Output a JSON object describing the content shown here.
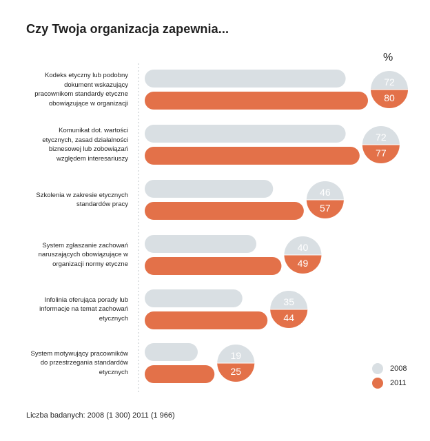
{
  "title": "Czy Twoja organizacja zapewnia...",
  "unit_label": "%",
  "footer": "Liczba badanych: 2008 (1 300) 2011 (1 966)",
  "colors": {
    "series_2008": "#d9dfe3",
    "series_2011": "#e37149",
    "divider": "#bfc5c9"
  },
  "chart_data": {
    "type": "bar",
    "orientation": "horizontal",
    "title": "Czy Twoja organizacja zapewnia...",
    "unit": "%",
    "categories": [
      "Kodeks etyczny lub podobny dokument wskazujący pracownikom standardy etyczne obowiązujące w organizacji",
      "Komunikat dot. wartości etycznych, zasad działalności biznesowej lub zobowiązań względem interesariuszy",
      "Szkolenia w zakresie etycznych standardów pracy",
      "System zgłaszanie zachowań naruszających obowiązujące w organizacji normy etyczne",
      "Infolinia oferująca porady lub informacje na temat zachowań etycznych",
      "System motywujący pracowników do przestrzegania standardów etycznych"
    ],
    "category_lines": [
      [
        "Kodeks etyczny lub podobny",
        "dokument wskazujący",
        "pracownikom standardy etyczne",
        "obowiązujące w organizacji"
      ],
      [
        "Komunikat dot. wartości",
        "etycznych, zasad działalności",
        "biznesowej lub zobowiązań",
        "względem interesariuszy"
      ],
      [
        "Szkolenia w zakresie etycznych",
        "standardów pracy"
      ],
      [
        "System zgłaszanie zachowań",
        "naruszających obowiązujące w",
        "organizacji normy etyczne"
      ],
      [
        "Infolinia oferująca porady lub",
        "informacje na temat zachowań",
        "etycznych"
      ],
      [
        "System motywujący pracowników",
        "do przestrzegania standardów",
        "etycznych"
      ]
    ],
    "series": [
      {
        "name": "2008",
        "values": [
          72,
          72,
          46,
          40,
          35,
          19
        ]
      },
      {
        "name": "2011",
        "values": [
          80,
          77,
          57,
          49,
          44,
          25
        ]
      }
    ],
    "xlim": [
      0,
      100
    ],
    "legend": "bottom-right"
  }
}
